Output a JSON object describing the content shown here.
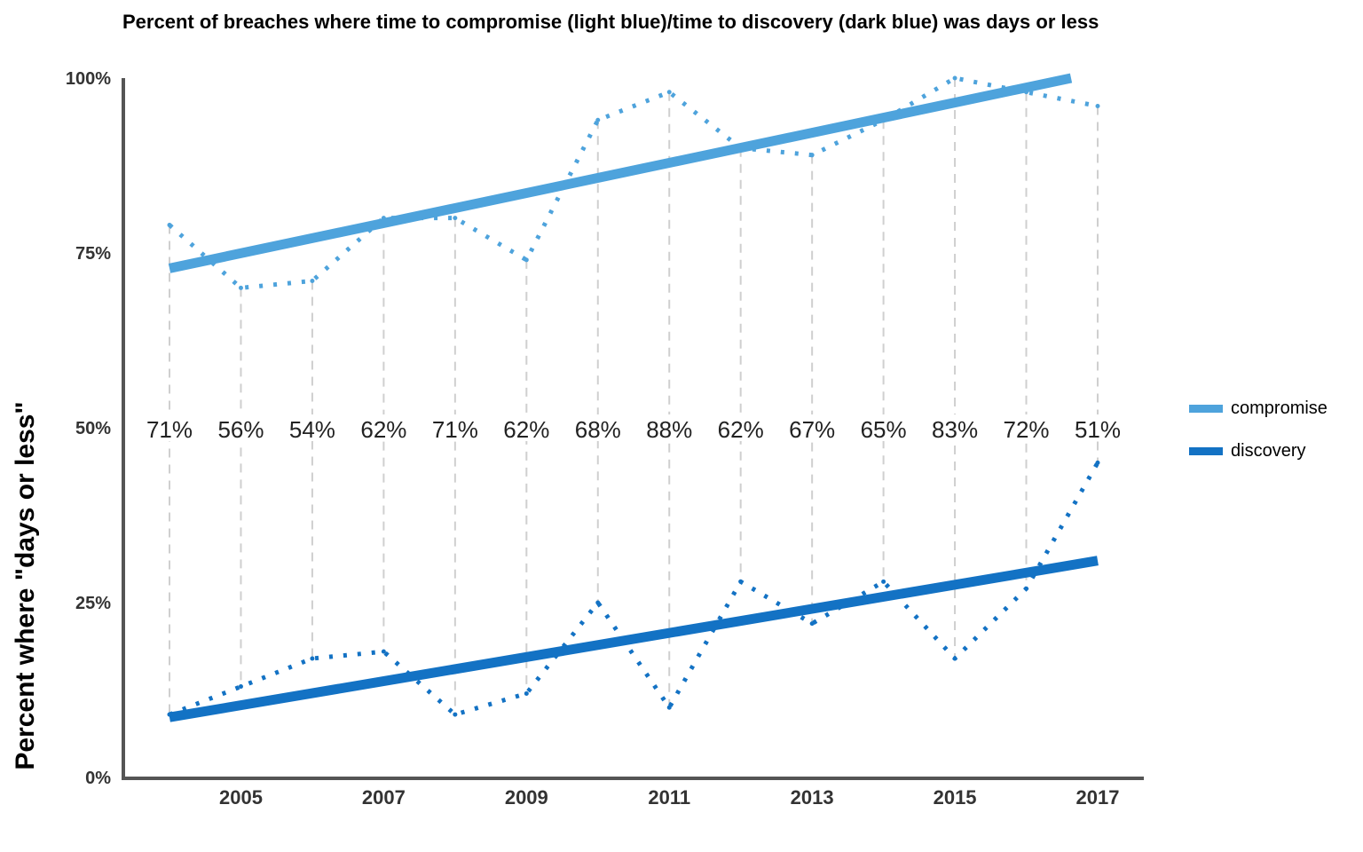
{
  "chart_data": {
    "type": "line",
    "title": "Percent of breaches where time to compromise (light blue)/time to discovery (dark blue) was days or less",
    "ylabel": "Percent where \"days or less\"",
    "xlabel": "",
    "ylim": [
      0,
      100
    ],
    "xlim": [
      2004,
      2017
    ],
    "y_ticks": [
      "0%",
      "25%",
      "50%",
      "75%",
      "100%"
    ],
    "y_tick_values": [
      0,
      25,
      50,
      75,
      100
    ],
    "x_ticks": [
      "2005",
      "2007",
      "2009",
      "2011",
      "2013",
      "2015",
      "2017"
    ],
    "x_tick_values": [
      2005,
      2007,
      2009,
      2011,
      2013,
      2015,
      2017
    ],
    "x": [
      2004,
      2005,
      2006,
      2007,
      2008,
      2009,
      2010,
      2011,
      2012,
      2013,
      2014,
      2015,
      2016,
      2017
    ],
    "series": [
      {
        "name": "compromise",
        "color": "#4ea3dc",
        "values": [
          79,
          70,
          71,
          80,
          80,
          74,
          94,
          98,
          90,
          89,
          94,
          100,
          98,
          96
        ],
        "trend": [
          72.8,
          100
        ]
      },
      {
        "name": "discovery",
        "color": "#1372c4",
        "values": [
          9,
          13,
          17,
          18,
          9,
          12,
          25,
          10,
          28,
          22,
          28,
          17,
          27,
          45
        ],
        "trend": [
          8.6,
          31
        ]
      }
    ],
    "gap_labels": [
      "71%",
      "56%",
      "54%",
      "62%",
      "71%",
      "62%",
      "68%",
      "88%",
      "62%",
      "67%",
      "65%",
      "83%",
      "72%",
      "51%"
    ],
    "grid": false,
    "legend": "right"
  }
}
